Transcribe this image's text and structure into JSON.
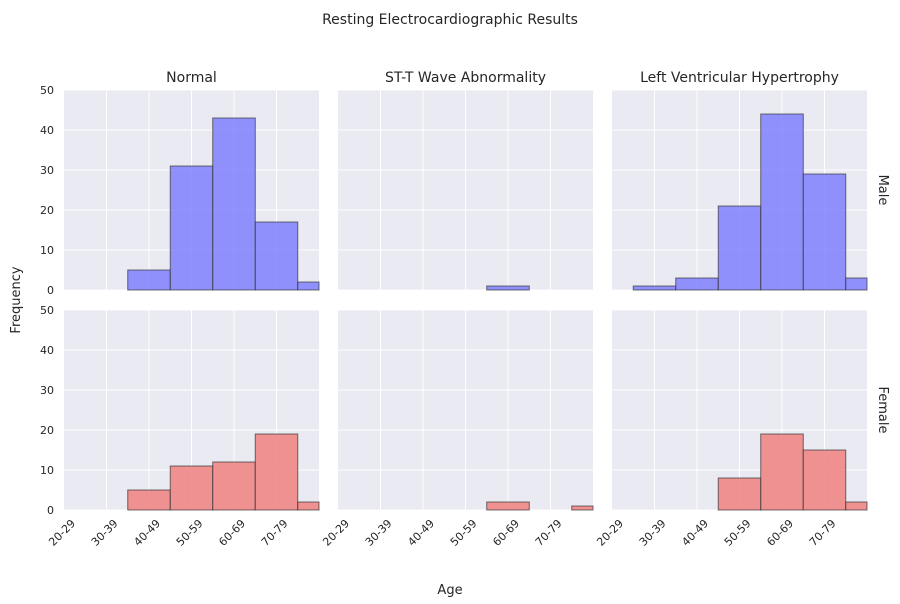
{
  "chart_data": {
    "type": "bar",
    "title": "Resting Electrocardiographic Results",
    "xlabel": "Age",
    "ylabel": "Frequency",
    "categories": [
      "20-29",
      "30-39",
      "40-49",
      "50-59",
      "60-69",
      "70-79"
    ],
    "ylim": [
      0,
      50
    ],
    "yticks": [
      0,
      10,
      20,
      30,
      40,
      50
    ],
    "grid": true,
    "columns": [
      "Normal",
      "ST-T Wave Abnormality",
      "Left Ventricular Hypertrophy"
    ],
    "rows": [
      "Male",
      "Female"
    ],
    "colors": {
      "Male": "#8080ff",
      "Female": "#f08080",
      "background": "#eaeaf2",
      "grid": "#ffffff",
      "edge": "#333333"
    },
    "panels": [
      {
        "row": "Male",
        "column": "Normal",
        "values": [
          0,
          5,
          31,
          43,
          17,
          2
        ]
      },
      {
        "row": "Male",
        "column": "ST-T Wave Abnormality",
        "values": [
          0,
          0,
          0,
          1,
          0,
          0
        ]
      },
      {
        "row": "Male",
        "column": "Left Ventricular Hypertrophy",
        "values": [
          1,
          3,
          21,
          44,
          29,
          3
        ]
      },
      {
        "row": "Female",
        "column": "Normal",
        "values": [
          0,
          5,
          11,
          12,
          19,
          2
        ]
      },
      {
        "row": "Female",
        "column": "ST-T Wave Abnormality",
        "values": [
          0,
          0,
          0,
          2,
          0,
          1
        ]
      },
      {
        "row": "Female",
        "column": "Left Ventricular Hypertrophy",
        "values": [
          0,
          0,
          8,
          19,
          15,
          2
        ]
      }
    ]
  }
}
